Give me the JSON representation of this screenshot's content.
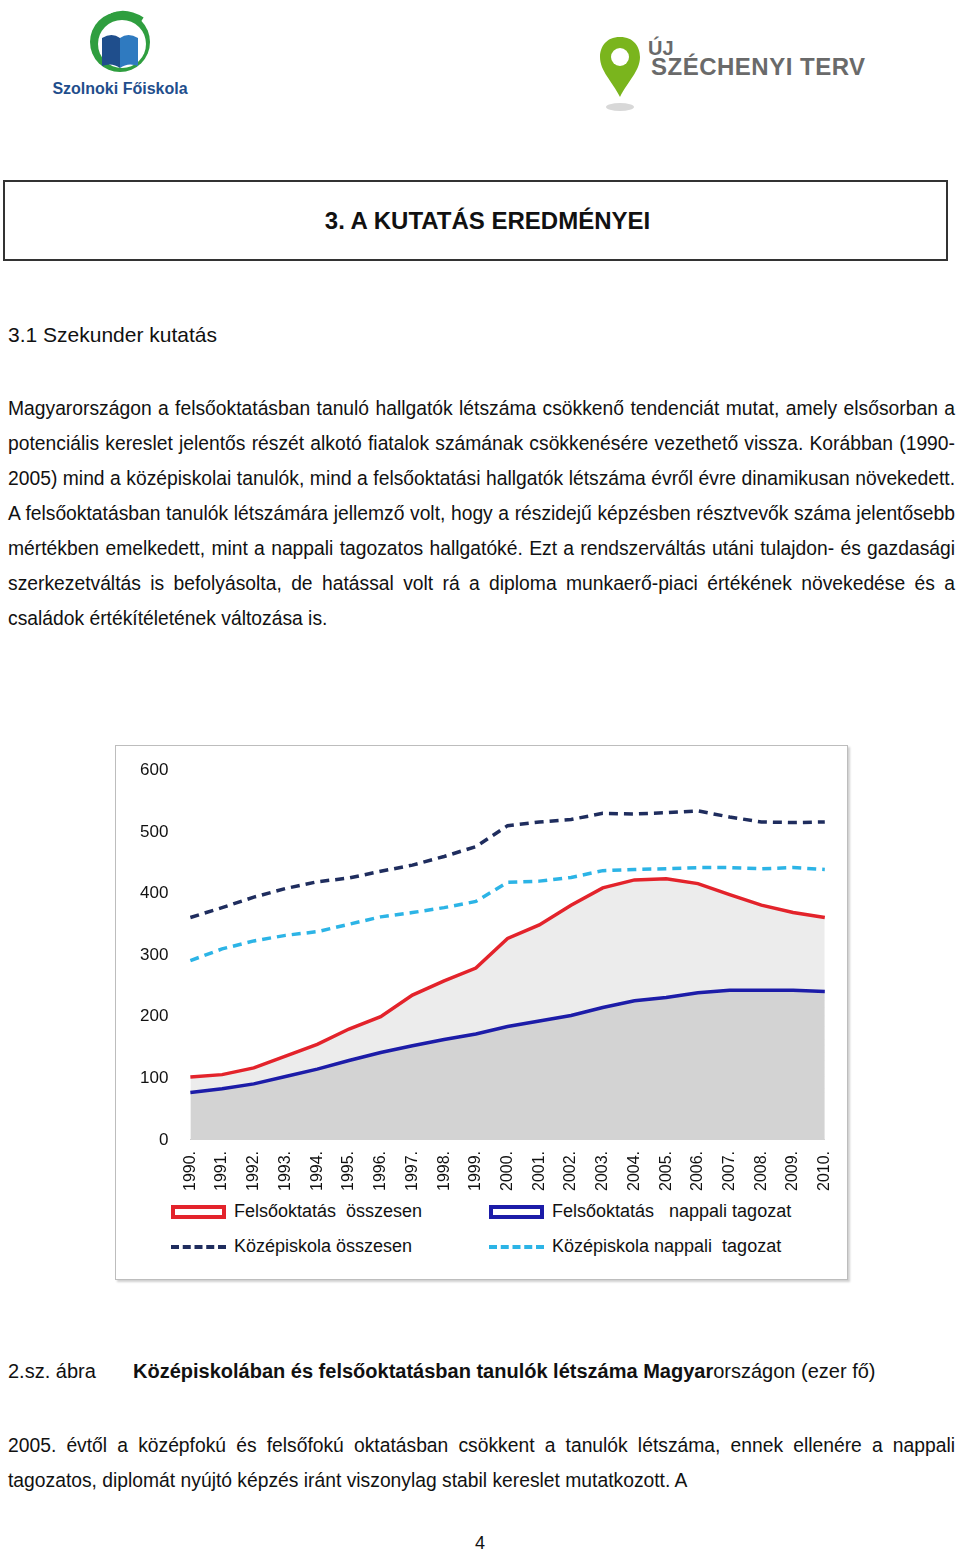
{
  "header": {
    "left_logo_text": "Szolnoki Főiskola",
    "right_logo_prefix": "ÚJ",
    "right_logo_text": "SZÉCHENYI TERV"
  },
  "chapter_title": "3. A KUTATÁS EREDMÉNYEI",
  "section_title": "3.1 Szekunder kutatás",
  "paragraph": "Magyarországon a felsőoktatásban tanuló hallgatók létszáma csökkenő tendenciát mutat, amely elsősorban a potenciális kereslet jelentős részét alkotó fiatalok számának csökkenésére vezethető vissza. Korábban (1990-2005) mind a középiskolai tanulók, mind a felsőoktatási hallgatók létszáma évről évre dinamikusan növekedett. A felsőoktatásban tanulók létszámára jellemző volt, hogy a részidejű képzésben résztvevők száma jelentősebb mértékben emelkedett, mint a nappali tagozatos hallgatóké. Ezt a rendszerváltás utáni tulajdon- és gazdasági szerkezetváltás is befolyásolta, de hatással volt rá a diploma munkaerő-piaci értékének növekedése és a családok értékítéletének változása is.",
  "chart_data": {
    "type": "line",
    "categories": [
      "1990.",
      "1991.",
      "1992.",
      "1993.",
      "1994.",
      "1995.",
      "1996.",
      "1997.",
      "1998.",
      "1999.",
      "2000.",
      "2001.",
      "2002.",
      "2003.",
      "2004.",
      "2005.",
      "2006.",
      "2007.",
      "2008.",
      "2009.",
      "2010."
    ],
    "series": [
      {
        "name": "Felsőoktatás  összesen",
        "color": "#e3232b",
        "line_style": "solid",
        "values": [
          102,
          106,
          117,
          136,
          155,
          180,
          200,
          235,
          258,
          279,
          327,
          349,
          381,
          409,
          422,
          424,
          416,
          398,
          381,
          369,
          361
        ]
      },
      {
        "name": "Felsőoktatás   nappali tagozat",
        "color": "#1c1ca8",
        "line_style": "solid",
        "values": [
          77,
          83,
          91,
          103,
          115,
          129,
          142,
          153,
          163,
          172,
          184,
          193,
          202,
          215,
          226,
          231,
          239,
          243,
          243,
          243,
          241
        ]
      },
      {
        "name": "Középiskola összesen",
        "color": "#1f2d5e",
        "line_style": "dashed",
        "values": [
          361,
          377,
          394,
          408,
          419,
          425,
          436,
          446,
          460,
          476,
          510,
          516,
          520,
          530,
          529,
          531,
          534,
          524,
          516,
          515,
          516
        ]
      },
      {
        "name": "Középiskola nappali  tagozat",
        "color": "#2cb4e6",
        "line_style": "dashed",
        "values": [
          291,
          310,
          323,
          332,
          338,
          350,
          362,
          369,
          377,
          387,
          418,
          420,
          426,
          437,
          439,
          440,
          442,
          442,
          440,
          442,
          439
        ]
      }
    ],
    "ylim": [
      0,
      600
    ],
    "yticks": [
      0,
      100,
      200,
      300,
      400,
      500,
      600
    ],
    "grid": false,
    "legend": "bottom",
    "marker": "none"
  },
  "caption": {
    "number": "2.sz. ábra",
    "title_bold": "Középiskolában és felsőoktatásban tanulók létszáma Magyar",
    "title_rest": "országon (ezer fő)"
  },
  "body_text": "2005. évtől a középfokú és felsőfokú oktatásban csökkent a tanulók létszáma, ennek ellenére a nappali tagozatos, diplomát nyújtó képzés iránt viszonylag stabil kereslet mutatkozott. A",
  "page_number": "4"
}
